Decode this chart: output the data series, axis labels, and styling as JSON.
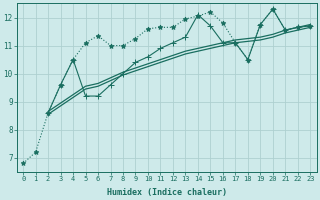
{
  "bg_color": "#ceeaea",
  "grid_color": "#aed0d0",
  "line_color": "#1a6e60",
  "xlabel": "Humidex (Indice chaleur)",
  "xlim": [
    -0.5,
    23.5
  ],
  "ylim": [
    6.5,
    12.5
  ],
  "yticks": [
    7,
    8,
    9,
    10,
    11,
    12
  ],
  "xticks": [
    0,
    1,
    2,
    3,
    4,
    5,
    6,
    7,
    8,
    9,
    10,
    11,
    12,
    13,
    14,
    15,
    16,
    17,
    18,
    19,
    20,
    21,
    22,
    23
  ],
  "series": [
    {
      "x": [
        0,
        1,
        2,
        3,
        4,
        5,
        6,
        7,
        8,
        9,
        10,
        11,
        12,
        13,
        14,
        15,
        16,
        17,
        18,
        19,
        20,
        21,
        22,
        23
      ],
      "y": [
        6.8,
        7.2,
        8.6,
        9.6,
        10.5,
        11.1,
        11.35,
        11.0,
        11.0,
        11.25,
        11.6,
        11.65,
        11.65,
        11.95,
        12.05,
        12.2,
        11.8,
        11.1,
        10.5,
        11.75,
        12.3,
        11.55,
        11.65,
        11.7
      ],
      "marker": "*",
      "linestyle": "dotted",
      "linewidth": 0.8,
      "markersize": 3.5
    },
    {
      "x": [
        2,
        3,
        4,
        5,
        6,
        7,
        8,
        9,
        10,
        11,
        12,
        13,
        14,
        15,
        16,
        17,
        18,
        19,
        20,
        21,
        22,
        23
      ],
      "y": [
        8.55,
        8.85,
        9.15,
        9.45,
        9.55,
        9.75,
        9.95,
        10.1,
        10.25,
        10.4,
        10.55,
        10.7,
        10.8,
        10.9,
        11.0,
        11.1,
        11.15,
        11.2,
        11.3,
        11.45,
        11.55,
        11.65
      ],
      "marker": null,
      "linestyle": "solid",
      "linewidth": 0.9,
      "markersize": 0
    },
    {
      "x": [
        2,
        3,
        4,
        5,
        6,
        7,
        8,
        9,
        10,
        11,
        12,
        13,
        14,
        15,
        16,
        17,
        18,
        19,
        20,
        21,
        22,
        23
      ],
      "y": [
        8.65,
        8.95,
        9.25,
        9.55,
        9.65,
        9.85,
        10.05,
        10.2,
        10.35,
        10.5,
        10.65,
        10.8,
        10.9,
        11.0,
        11.1,
        11.2,
        11.25,
        11.3,
        11.4,
        11.55,
        11.65,
        11.75
      ],
      "marker": null,
      "linestyle": "solid",
      "linewidth": 0.9,
      "markersize": 0
    },
    {
      "x": [
        2,
        3,
        4,
        5,
        6,
        7,
        8,
        9,
        10,
        11,
        12,
        13,
        14,
        15,
        16,
        17,
        18,
        19,
        20,
        21,
        22,
        23
      ],
      "y": [
        8.6,
        9.6,
        10.5,
        9.2,
        9.2,
        9.6,
        10.0,
        10.4,
        10.6,
        10.9,
        11.1,
        11.3,
        12.1,
        11.7,
        11.1,
        11.1,
        10.5,
        11.75,
        12.3,
        11.55,
        11.65,
        11.7
      ],
      "marker": "+",
      "linestyle": "solid",
      "linewidth": 0.8,
      "markersize": 4
    }
  ]
}
